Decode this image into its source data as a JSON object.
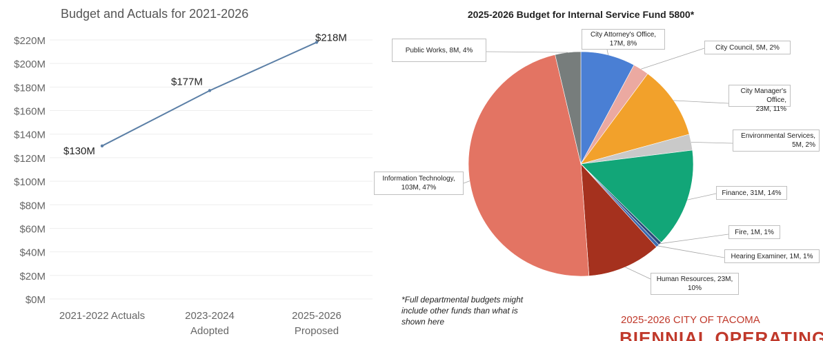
{
  "chart_data": [
    {
      "type": "line",
      "title": "Budget and Actuals for 2021-2026",
      "categories": [
        "2021-2022 Actuals",
        "2023-2024 Adopted",
        "2025-2026 Proposed"
      ],
      "category_lines": [
        [
          "2021-2022 Actuals"
        ],
        [
          "2023-2024",
          "Adopted"
        ],
        [
          "2025-2026",
          "Proposed"
        ]
      ],
      "series": [
        {
          "values": [
            130,
            177,
            218
          ]
        }
      ],
      "data_labels": [
        "$130M",
        "$177M",
        "$218M"
      ],
      "y_ticks": [
        "$0M",
        "$20M",
        "$40M",
        "$60M",
        "$80M",
        "$100M",
        "$120M",
        "$140M",
        "$160M",
        "$180M",
        "$200M",
        "$220M"
      ],
      "ylim": [
        0,
        220
      ],
      "grid": true,
      "line_color": "#5b7fa6"
    },
    {
      "type": "pie",
      "title": "2025-2026 Budget for Internal Service Fund 5800*",
      "slices": [
        {
          "name": "City Attorney's Office",
          "value": 17,
          "percent": 8,
          "label": "City Attorney's Office, 17M, 8%",
          "color": "#4a7fd4"
        },
        {
          "name": "City Council",
          "value": 5,
          "percent": 2,
          "label": "City Council, 5M, 2%",
          "color": "#eba9a1"
        },
        {
          "name": "City Manager's Office",
          "value": 23,
          "percent": 11,
          "label": "City Manager's Office, 23M, 11%",
          "color": "#f2a12b"
        },
        {
          "name": "Environmental Services",
          "value": 5,
          "percent": 2,
          "label": "Environmental Services, 5M, 2%",
          "color": "#c9c9c9"
        },
        {
          "name": "Finance",
          "value": 31,
          "percent": 14,
          "label": "Finance, 31M, 14%",
          "color": "#12a678"
        },
        {
          "name": "Fire",
          "value": 1,
          "percent": 1,
          "label": "Fire, 1M, 1%",
          "color": "#2e4a7a"
        },
        {
          "name": "Hearing Examiner",
          "value": 1,
          "percent": 1,
          "label": "Hearing Examiner, 1M, 1%",
          "color": "#3d6bb0"
        },
        {
          "name": "Human Resources",
          "value": 23,
          "percent": 10,
          "label": "Human Resources, 23M, 10%",
          "color": "#a5311e"
        },
        {
          "name": "Information Technology",
          "value": 103,
          "percent": 47,
          "label": "Information Technology, 103M, 47%",
          "color": "#e37463"
        },
        {
          "name": "Public Works",
          "value": 8,
          "percent": 4,
          "label": "Public Works, 8M, 4%",
          "color": "#777d7c"
        }
      ]
    }
  ],
  "labels": {
    "attorney": [
      "City Attorney's Office,",
      "17M, 8%"
    ],
    "council": [
      "City Council, 5M, 2%"
    ],
    "manager": [
      "City Manager's Office,",
      "23M, 11%"
    ],
    "env": [
      "Environmental Services,",
      "5M, 2%"
    ],
    "finance": [
      "Finance, 31M, 14%"
    ],
    "fire": [
      "Fire, 1M, 1%"
    ],
    "hearing": [
      "Hearing Examiner, 1M, 1%"
    ],
    "hr": [
      "Human Resources, 23M,",
      "10%"
    ],
    "it": [
      "Information Technology,",
      "103M, 47%"
    ],
    "pw": [
      "Public Works, 8M, 4%"
    ]
  },
  "footnote": [
    "*Full departmental budgets might",
    "include other funds than what is",
    "shown here"
  ],
  "branding": {
    "subtitle": "2025-2026 CITY OF TACOMA",
    "title": "BIENNIAL OPERATING"
  }
}
